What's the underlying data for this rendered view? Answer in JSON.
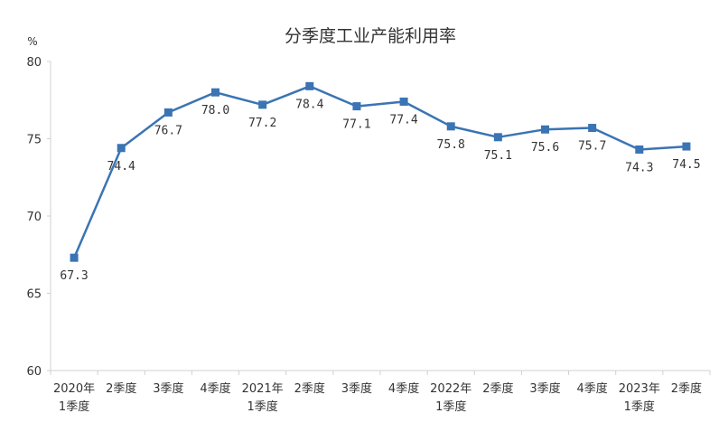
{
  "chart_data": {
    "type": "line",
    "title": "分季度工业产能利用率",
    "unit_label": "%",
    "ylim": [
      60,
      80
    ],
    "y_ticks": [
      60,
      65,
      70,
      75,
      80
    ],
    "grid": false,
    "line_color": "#3A74B4",
    "categories": [
      [
        "2020年",
        "1季度"
      ],
      [
        "2季度"
      ],
      [
        "3季度"
      ],
      [
        "4季度"
      ],
      [
        "2021年",
        "1季度"
      ],
      [
        "2季度"
      ],
      [
        "3季度"
      ],
      [
        "4季度"
      ],
      [
        "2022年",
        "1季度"
      ],
      [
        "2季度"
      ],
      [
        "3季度"
      ],
      [
        "4季度"
      ],
      [
        "2023年",
        "1季度"
      ],
      [
        "2季度"
      ]
    ],
    "values": [
      67.3,
      74.4,
      76.7,
      78.0,
      77.2,
      78.4,
      77.1,
      77.4,
      75.8,
      75.1,
      75.6,
      75.7,
      74.3,
      74.5
    ],
    "data_labels": [
      "67.3",
      "74.4",
      "76.7",
      "78.0",
      "77.2",
      "78.4",
      "77.1",
      "77.4",
      "75.8",
      "75.1",
      "75.6",
      "75.7",
      "74.3",
      "74.5"
    ]
  }
}
